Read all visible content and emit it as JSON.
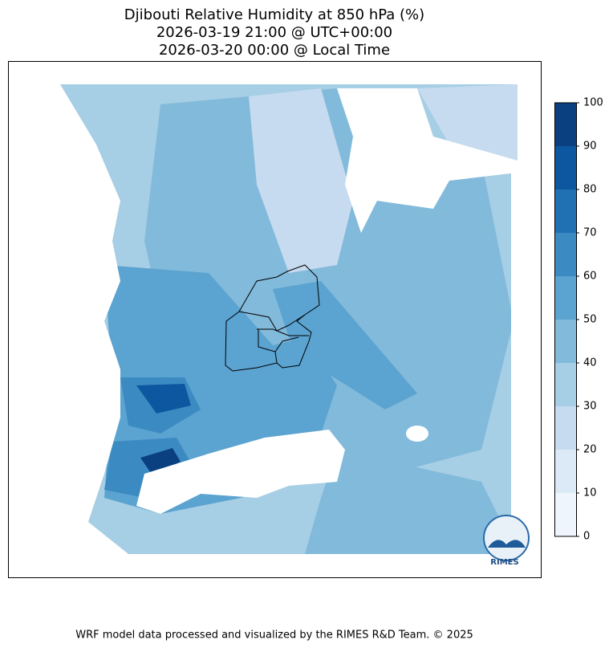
{
  "header": {
    "title_lines": [
      "Djibouti Relative Humidity at 850 hPa (%)",
      "2026-03-19 21:00 @ UTC+00:00",
      "2026-03-20 00:00 @ Local Time"
    ]
  },
  "colorbar": {
    "ticks": [
      0,
      10,
      20,
      30,
      40,
      50,
      60,
      70,
      80,
      90,
      100
    ],
    "colors": [
      "#eef5fc",
      "#dceaf7",
      "#c6dbef",
      "#a6cee4",
      "#82badb",
      "#5ba3d0",
      "#3b8bc2",
      "#2070b4",
      "#0d57a1",
      "#0a3f80"
    ]
  },
  "logo": "RIMES",
  "footer": "WRF model data processed and visualized by the RIMES R&D Team. © 2025"
}
